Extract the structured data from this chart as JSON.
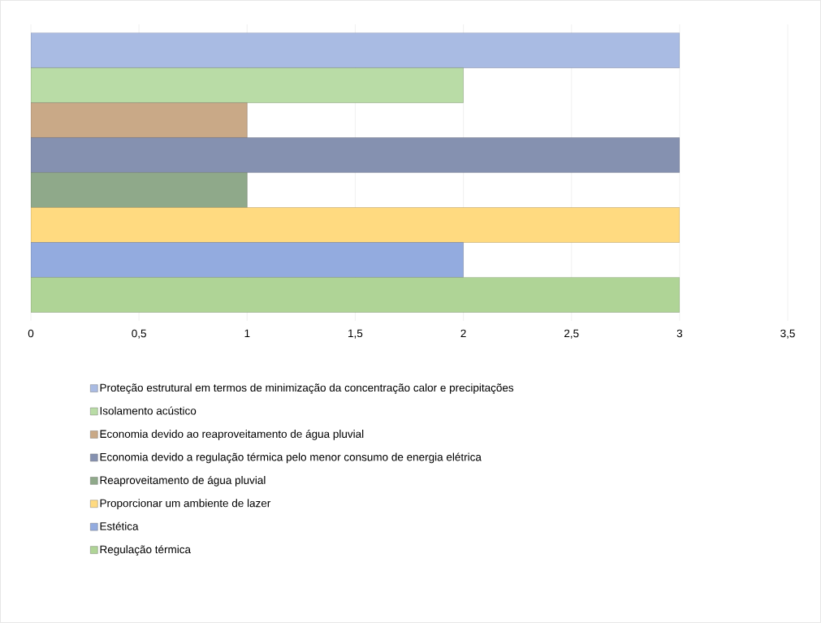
{
  "chart_data": {
    "type": "bar",
    "orientation": "horizontal",
    "categories": [
      null
    ],
    "series": [
      {
        "name": "Proteção estrutural em termos de minimização da concentração calor e precipitações",
        "color": "#a9bbe3",
        "values": [
          3
        ]
      },
      {
        "name": "Isolamento acústico",
        "color": "#b9dca6",
        "values": [
          2
        ]
      },
      {
        "name": "Economia devido ao reaproveitamento de água pluvial",
        "color": "#c9a987",
        "values": [
          1
        ]
      },
      {
        "name": "Economia devido a regulação térmica pelo menor consumo de energia elétrica",
        "color": "#8591b0",
        "values": [
          3
        ]
      },
      {
        "name": "Reaproveitamento de água pluvial",
        "color": "#8fa98a",
        "values": [
          1
        ]
      },
      {
        "name": "Proporcionar um ambiente de lazer",
        "color": "#ffda80",
        "values": [
          3
        ]
      },
      {
        "name": "Estética",
        "color": "#93abdf",
        "values": [
          2
        ]
      },
      {
        "name": "Regulação térmica",
        "color": "#afd496",
        "values": [
          3
        ]
      }
    ],
    "xlim": [
      0,
      3.5
    ],
    "xticks": [
      0,
      {
        "value": 0.5,
        "label": "0,5"
      },
      1,
      {
        "value": 1.5,
        "label": "1,5"
      },
      2,
      {
        "value": 2.5,
        "label": "2,5"
      },
      3,
      {
        "value": 3.5,
        "label": "3,5"
      }
    ],
    "grid": "x",
    "legend": "bottom"
  }
}
